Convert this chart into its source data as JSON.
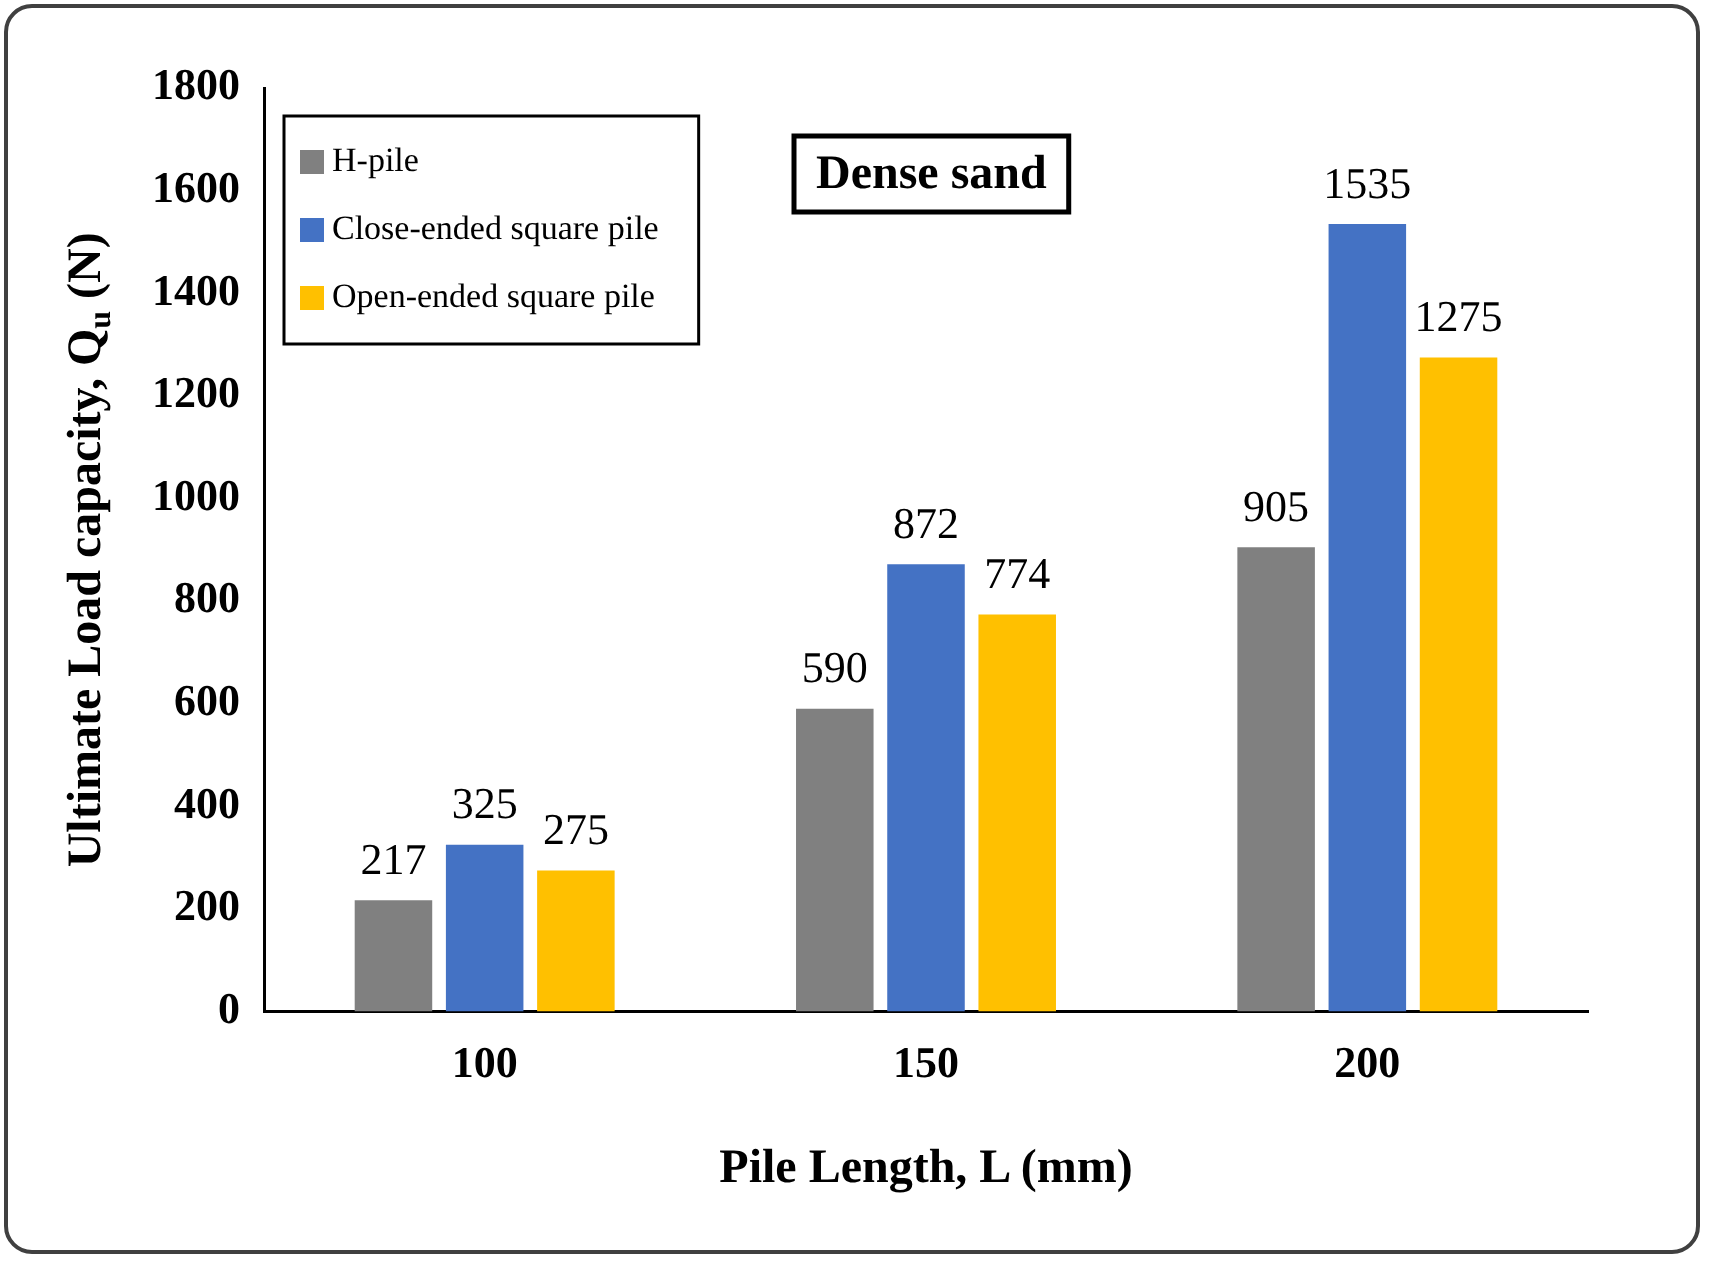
{
  "chart_data": {
    "type": "bar",
    "xlabel": "Pile Length, L (mm)",
    "ylabel": "Ultimate Load capacity, Q$_{u}$ (N)",
    "categories": [
      "100",
      "150",
      "200"
    ],
    "series": [
      {
        "name": "H-pile",
        "color": "#808080",
        "values": [
          217,
          590,
          905
        ]
      },
      {
        "name": "Close-ended square pile",
        "color": "#4472c4",
        "values": [
          325,
          872,
          1535
        ]
      },
      {
        "name": "Open-ended square pile",
        "color": "#ffc000",
        "values": [
          275,
          774,
          1275
        ]
      }
    ],
    "ylim": [
      0,
      1800
    ],
    "yticks": [
      0,
      200,
      400,
      600,
      800,
      1000,
      1200,
      1400,
      1600,
      1800
    ],
    "grid": false,
    "legend": "top left",
    "data_labels": true,
    "annotations": [
      "Dense sand"
    ]
  }
}
